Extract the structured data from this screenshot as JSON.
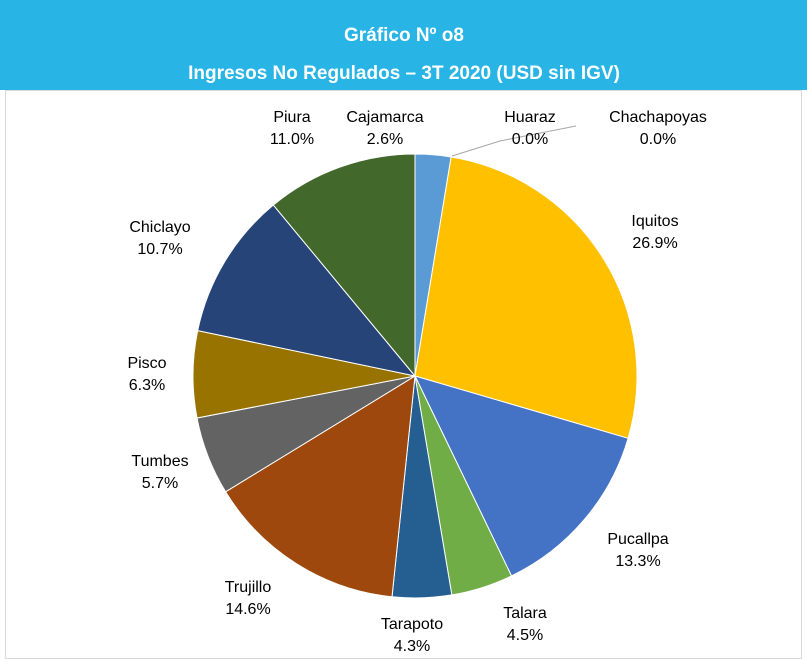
{
  "chart_data": {
    "type": "pie",
    "title": "Gráfico Nº o8",
    "subtitle": "Ingresos No Regulados – 3T 2020 (USD sin IGV)",
    "categories": [
      "Cajamarca",
      "Huaraz",
      "Chachapoyas",
      "Iquitos",
      "Pucallpa",
      "Talara",
      "Tarapoto",
      "Trujillo",
      "Tumbes",
      "Pisco",
      "Chiclayo",
      "Piura"
    ],
    "values": [
      2.6,
      0.0,
      0.0,
      26.9,
      13.3,
      4.5,
      4.3,
      14.6,
      5.7,
      6.3,
      10.7,
      11.0
    ],
    "value_labels": [
      "2.6%",
      "0.0%",
      "0.0%",
      "26.9%",
      "13.3%",
      "4.5%",
      "4.3%",
      "14.6%",
      "5.7%",
      "6.3%",
      "10.7%",
      "11.0%"
    ],
    "colors": [
      "#5b9bd5",
      "#a5a5a5",
      "#ed7d31",
      "#ffc000",
      "#4472c4",
      "#70ad47",
      "#255e91",
      "#9e480e",
      "#636363",
      "#997300",
      "#264478",
      "#43682b"
    ]
  }
}
